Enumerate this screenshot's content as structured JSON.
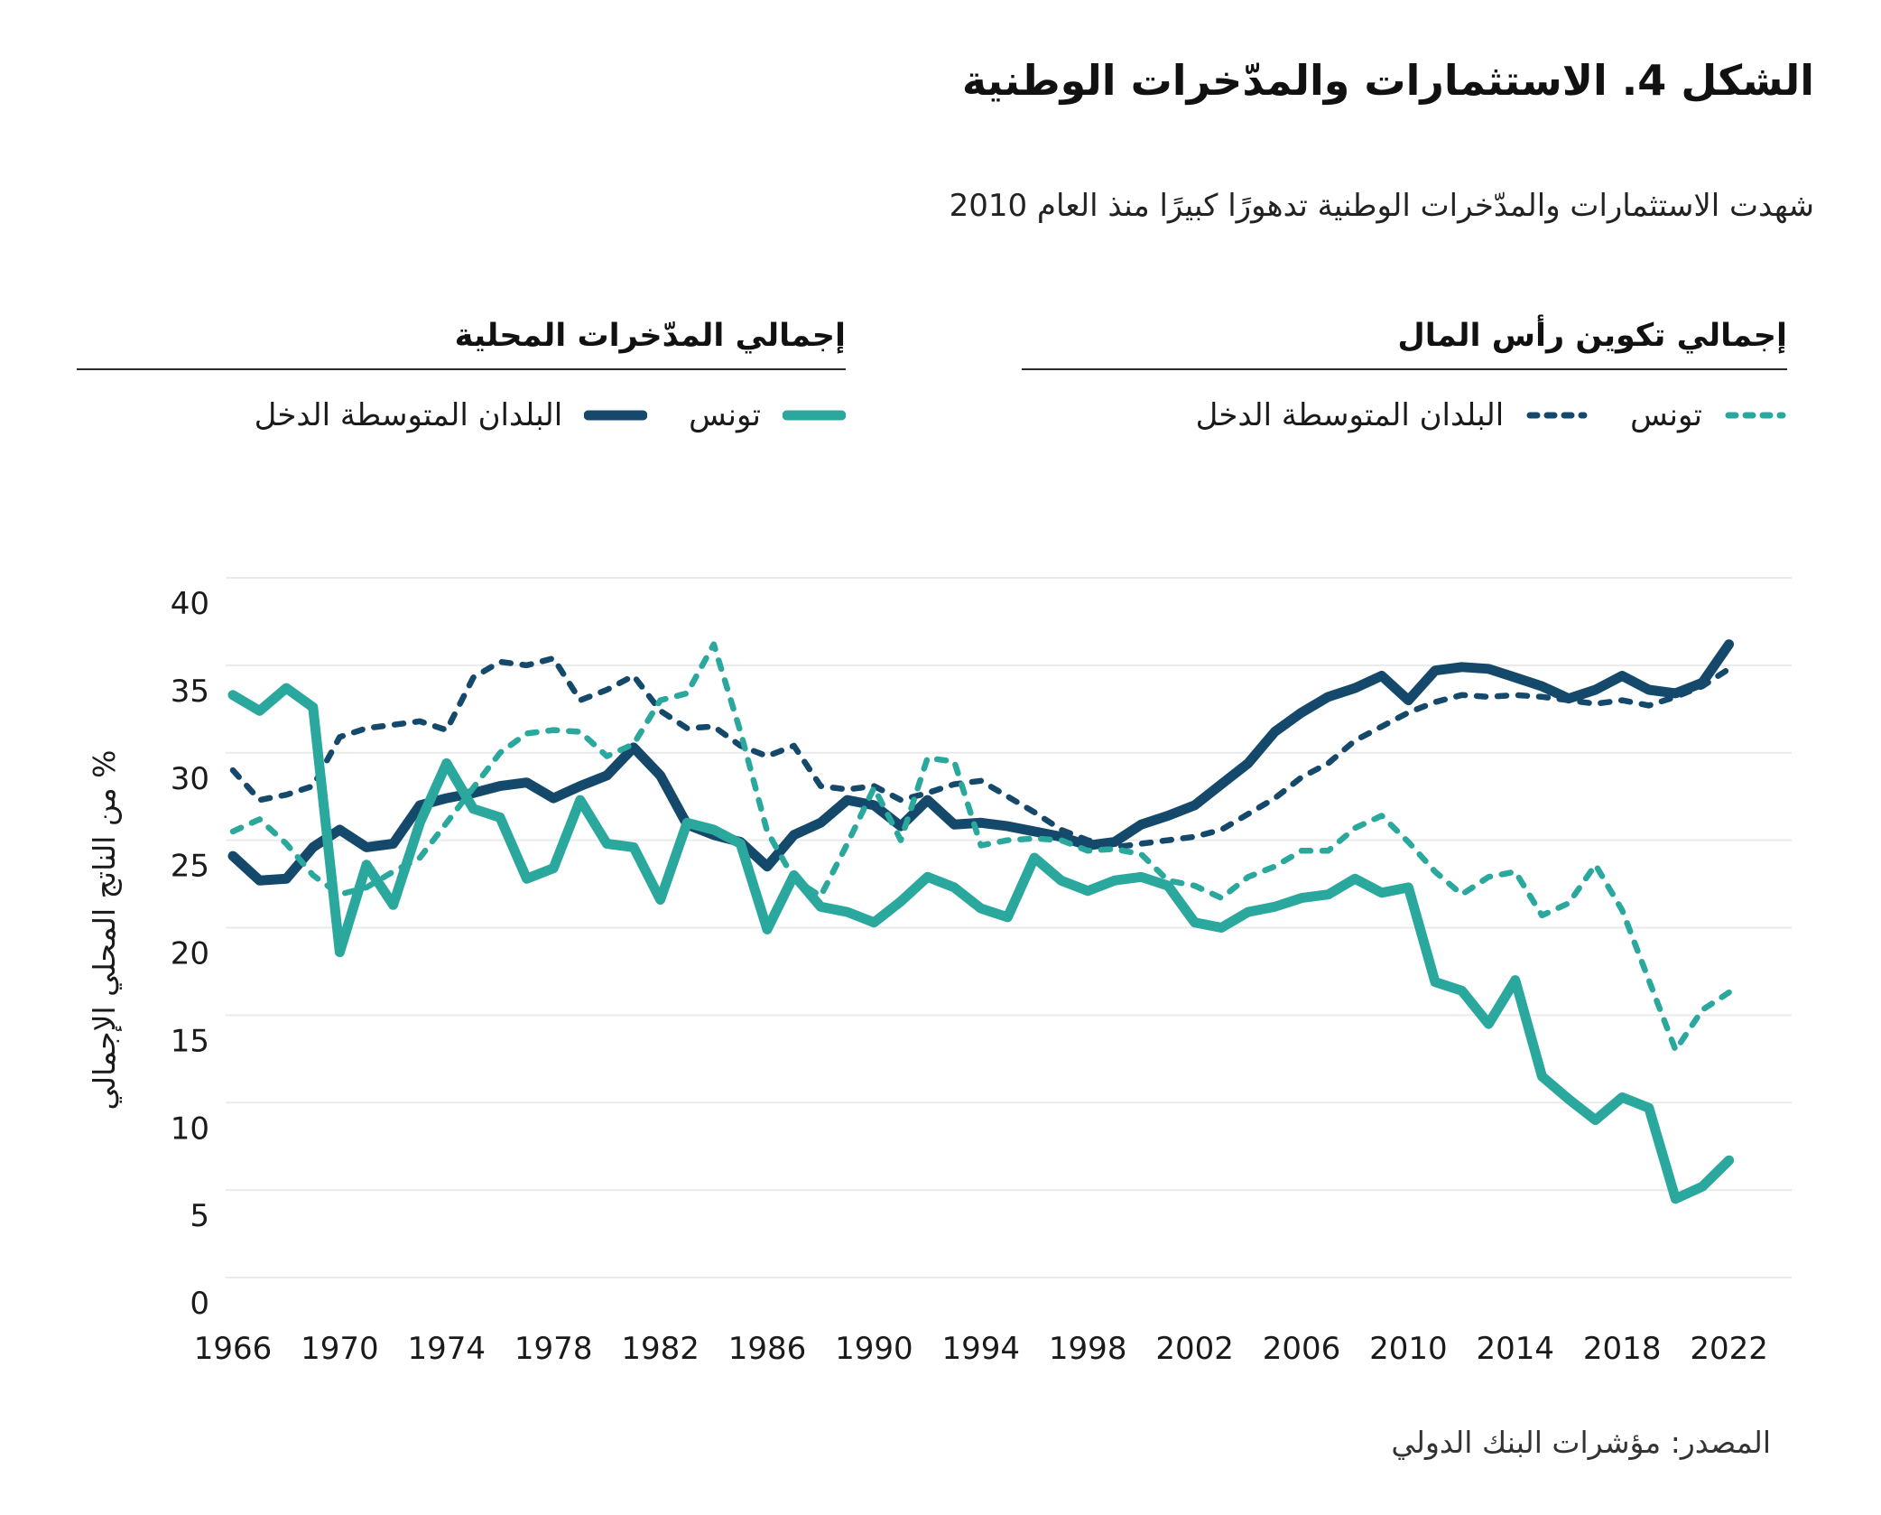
{
  "title": "الشكل 4. الاستثمارات والمدّخرات الوطنية",
  "subtitle": "شهدت الاستثمارات والمدّخرات الوطنية تدهورًا كبيرًا منذ العام 2010",
  "source": "المصدر: مؤشرات البنك الدولي",
  "colors": {
    "teal": "#2BA89E",
    "navy": "#15496B",
    "grid": "#EAEAEA",
    "text": "#1A1A1A"
  },
  "legend": {
    "groups": [
      {
        "title": "إجمالي تكوين رأس المال",
        "style": "dashed",
        "items": [
          {
            "label": "تونس",
            "color": "#2BA89E"
          },
          {
            "label": "البلدان المتوسطة الدخل",
            "color": "#15496B"
          }
        ]
      },
      {
        "title": "إجمالي المدّخرات المحلية",
        "style": "solid",
        "items": [
          {
            "label": "تونس",
            "color": "#2BA89E"
          },
          {
            "label": "البلدان المتوسطة الدخل",
            "color": "#15496B"
          }
        ]
      }
    ]
  },
  "chart_data": {
    "type": "line",
    "title": "الشكل 4. الاستثمارات والمدّخرات الوطنية",
    "xlabel": "",
    "ylabel": "% من الناتج المحلي الإجمالي",
    "x_start": 1966,
    "x_end": 2022,
    "x_ticks": [
      1966,
      1970,
      1974,
      1978,
      1982,
      1986,
      1990,
      1994,
      1998,
      2002,
      2006,
      2010,
      2014,
      2018,
      2022
    ],
    "y_ticks": [
      0,
      5,
      10,
      15,
      20,
      25,
      30,
      35,
      40
    ],
    "ylim": [
      0,
      40
    ],
    "grid": "horizontal",
    "legend_position": "top",
    "series": [
      {
        "name": "البلدان المتوسطة الدخل — إجمالي تكوين رأس المال",
        "group": "إجمالي تكوين رأس المال",
        "style": "dashed",
        "color": "#15496B",
        "values": [
          29.0,
          27.3,
          27.6,
          28.1,
          30.9,
          31.4,
          31.6,
          31.8,
          31.3,
          34.3,
          35.2,
          35.0,
          35.4,
          33.0,
          33.6,
          34.4,
          32.4,
          31.4,
          31.5,
          30.4,
          29.8,
          30.4,
          28.1,
          27.9,
          28.1,
          27.3,
          27.7,
          28.2,
          28.4,
          27.5,
          26.6,
          25.6,
          25.0,
          24.6,
          24.8,
          25.0,
          25.2,
          25.6,
          26.5,
          27.4,
          28.6,
          29.4,
          30.7,
          31.5,
          32.3,
          32.9,
          33.3,
          33.2,
          33.3,
          33.2,
          33.0,
          32.8,
          33.0,
          32.7,
          33.2,
          33.8,
          34.8
        ]
      },
      {
        "name": "البلدان المتوسطة الدخل — إجمالي المدّخرات المحلية",
        "group": "إجمالي المدّخرات المحلية",
        "style": "solid",
        "color": "#15496B",
        "values": [
          24.1,
          22.7,
          22.8,
          24.6,
          25.6,
          24.6,
          24.8,
          27.0,
          27.4,
          27.7,
          28.1,
          28.3,
          27.4,
          28.1,
          28.7,
          30.3,
          28.7,
          25.9,
          25.3,
          24.9,
          23.5,
          25.3,
          26.0,
          27.3,
          27.0,
          25.8,
          27.3,
          25.9,
          26.0,
          25.8,
          25.5,
          25.2,
          24.7,
          24.9,
          25.9,
          26.4,
          27.0,
          28.2,
          29.4,
          31.2,
          32.3,
          33.2,
          33.7,
          34.4,
          33.0,
          34.7,
          34.9,
          34.8,
          34.3,
          33.8,
          33.1,
          33.6,
          34.4,
          33.6,
          33.4,
          34.0,
          36.2
        ]
      },
      {
        "name": "تونس — إجمالي تكوين رأس المال",
        "group": "إجمالي تكوين رأس المال",
        "style": "dashed",
        "color": "#2BA89E",
        "values": [
          25.5,
          26.2,
          24.8,
          23.0,
          21.9,
          22.3,
          23.2,
          24.0,
          26.0,
          28.0,
          30.0,
          31.1,
          31.3,
          31.2,
          29.8,
          30.5,
          33.0,
          33.4,
          36.2,
          31.2,
          25.5,
          22.8,
          21.8,
          24.8,
          28.0,
          25.0,
          29.7,
          29.5,
          24.7,
          25.0,
          25.1,
          25.0,
          24.4,
          24.5,
          24.2,
          22.7,
          22.4,
          21.7,
          22.9,
          23.5,
          24.4,
          24.4,
          25.7,
          26.4,
          24.9,
          23.2,
          21.9,
          22.9,
          23.2,
          20.7,
          21.4,
          23.6,
          21.0,
          17.0,
          13.0,
          15.3,
          16.3
        ]
      },
      {
        "name": "تونس — إجمالي المدّخرات المحلية",
        "group": "إجمالي المدّخرات المحلية",
        "style": "solid",
        "color": "#2BA89E",
        "values": [
          33.3,
          32.4,
          33.7,
          32.6,
          18.6,
          23.6,
          21.3,
          26.0,
          29.4,
          26.8,
          26.3,
          22.8,
          23.4,
          27.3,
          24.8,
          24.6,
          21.6,
          26.0,
          25.6,
          24.8,
          19.9,
          23.0,
          21.2,
          20.9,
          20.3,
          21.5,
          22.9,
          22.3,
          21.1,
          20.6,
          24.0,
          22.7,
          22.1,
          22.7,
          22.9,
          22.4,
          20.3,
          20.0,
          20.9,
          21.2,
          21.7,
          21.9,
          22.8,
          22.0,
          22.3,
          16.9,
          16.4,
          14.5,
          17.0,
          11.5,
          10.2,
          9.0,
          10.3,
          9.7,
          4.5,
          5.2,
          6.7
        ]
      }
    ]
  }
}
